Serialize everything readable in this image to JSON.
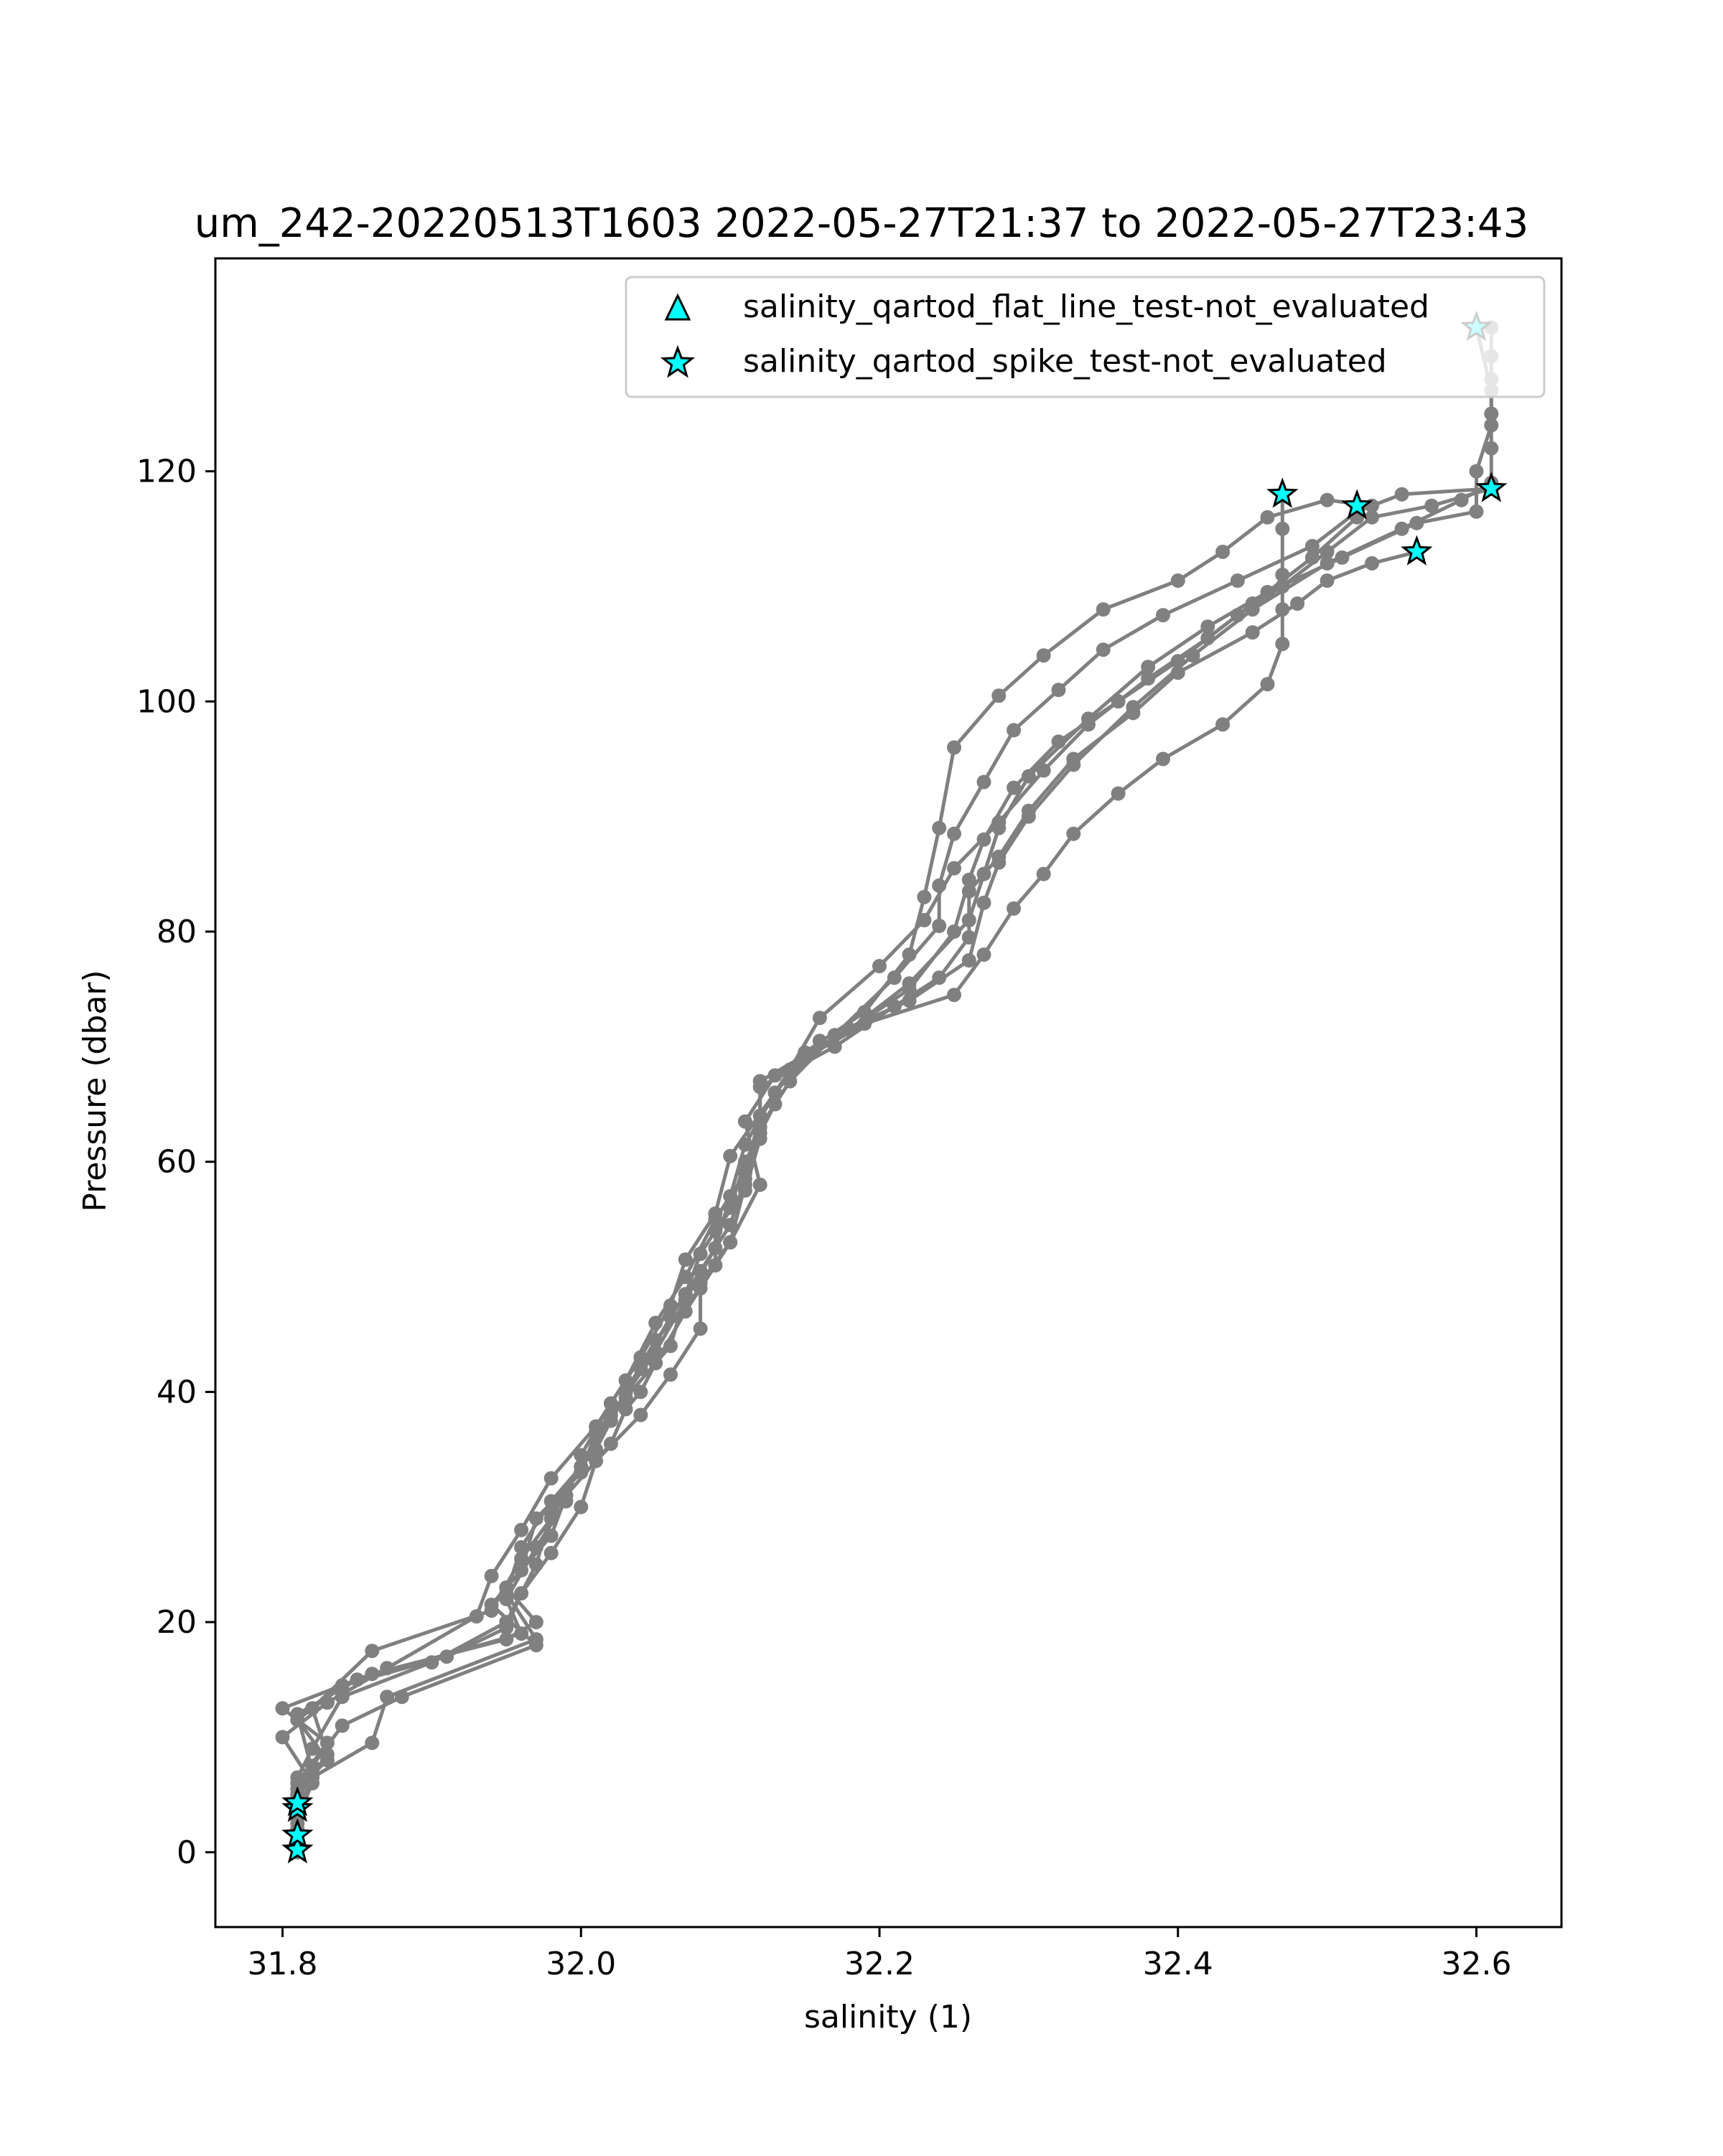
{
  "chart_data": {
    "type": "line",
    "title": "um_242-20220513T1603 2022-05-27T21:37 to 2022-05-27T23:43",
    "xlabel": "salinity (1)",
    "ylabel": "Pressure (dbar)",
    "xlim": [
      31.755,
      32.657
    ],
    "ylim": [
      138.5,
      -6.5
    ],
    "y_inverted": true,
    "grid": false,
    "x_ticks": [
      "31.8",
      "32.0",
      "32.2",
      "32.4",
      "32.6"
    ],
    "y_ticks": [
      "0",
      "20",
      "40",
      "60",
      "80",
      "100",
      "120"
    ],
    "legend_position": "upper right",
    "colors": {
      "profile": "#808080",
      "flag_fill": "#00ffff",
      "flag_edge": "#000000"
    },
    "legend": [
      {
        "label": "salinity_qartod_flat_line_test-not_evaluated",
        "marker": "triangle"
      },
      {
        "label": "salinity_qartod_spike_test-not_evaluated",
        "marker": "star"
      }
    ],
    "series": [
      {
        "name": "profile",
        "points": [
          [
            31.81,
            0.5
          ],
          [
            31.81,
            4.0
          ],
          [
            31.81,
            6.0
          ],
          [
            31.83,
            9.5
          ],
          [
            31.8,
            12.5
          ],
          [
            31.86,
            15.5
          ],
          [
            31.95,
            18.5
          ],
          [
            31.97,
            20.0
          ],
          [
            31.95,
            23.0
          ],
          [
            31.98,
            27.5
          ],
          [
            31.99,
            31.0
          ],
          [
            32.02,
            35.5
          ],
          [
            32.03,
            38.5
          ],
          [
            32.04,
            40.0
          ],
          [
            32.05,
            42.5
          ],
          [
            32.07,
            47.0
          ],
          [
            32.09,
            51.0
          ],
          [
            32.09,
            54.0
          ],
          [
            32.11,
            57.5
          ],
          [
            32.12,
            62.0
          ],
          [
            32.12,
            66.5
          ],
          [
            32.17,
            70.0
          ],
          [
            32.21,
            73.5
          ],
          [
            32.24,
            76.0
          ],
          [
            32.26,
            79.5
          ],
          [
            32.26,
            83.5
          ],
          [
            32.28,
            86.5
          ],
          [
            32.3,
            90.5
          ],
          [
            32.33,
            95.0
          ],
          [
            32.37,
            99.0
          ],
          [
            32.4,
            102.5
          ],
          [
            32.45,
            106.0
          ],
          [
            32.48,
            108.5
          ],
          [
            32.5,
            110.5
          ],
          [
            32.53,
            112.0
          ],
          [
            32.56,
            113.0
          ]
        ]
      },
      {
        "name": "profile",
        "points": [
          [
            31.81,
            1.0
          ],
          [
            31.81,
            5.0
          ],
          [
            31.82,
            7.5
          ],
          [
            31.84,
            11.0
          ],
          [
            31.88,
            13.5
          ],
          [
            31.97,
            18.0
          ],
          [
            31.94,
            21.5
          ],
          [
            31.96,
            24.5
          ],
          [
            31.97,
            29.0
          ],
          [
            32.0,
            33.0
          ],
          [
            32.01,
            36.5
          ],
          [
            32.03,
            39.5
          ],
          [
            32.06,
            44.0
          ],
          [
            32.07,
            48.5
          ],
          [
            32.08,
            52.0
          ],
          [
            32.1,
            56.0
          ],
          [
            32.11,
            60.0
          ],
          [
            32.13,
            65.0
          ],
          [
            32.15,
            69.0
          ],
          [
            32.19,
            72.0
          ],
          [
            32.25,
            74.5
          ],
          [
            32.27,
            78.0
          ],
          [
            32.29,
            82.0
          ],
          [
            32.31,
            85.0
          ],
          [
            32.33,
            88.5
          ],
          [
            32.36,
            92.0
          ],
          [
            32.39,
            95.0
          ],
          [
            32.43,
            98.0
          ],
          [
            32.46,
            101.5
          ],
          [
            32.47,
            105.0
          ],
          [
            32.47,
            108.0
          ],
          [
            32.47,
            111.0
          ],
          [
            32.47,
            115.0
          ],
          [
            32.47,
            118.0
          ]
        ]
      },
      {
        "name": "profile",
        "points": [
          [
            31.81,
            2.0
          ],
          [
            31.81,
            5.5
          ],
          [
            31.83,
            8.0
          ],
          [
            31.81,
            11.5
          ],
          [
            31.84,
            14.5
          ],
          [
            31.91,
            17.0
          ],
          [
            31.95,
            19.5
          ],
          [
            31.96,
            22.5
          ],
          [
            31.98,
            26.0
          ],
          [
            32.0,
            30.0
          ],
          [
            32.01,
            34.0
          ],
          [
            32.04,
            38.0
          ],
          [
            32.06,
            41.5
          ],
          [
            32.08,
            45.5
          ],
          [
            32.08,
            49.5
          ],
          [
            32.1,
            53.0
          ],
          [
            32.12,
            58.0
          ],
          [
            32.11,
            63.5
          ],
          [
            32.13,
            67.5
          ],
          [
            32.18,
            71.5
          ],
          [
            32.22,
            75.0
          ],
          [
            32.25,
            80.0
          ],
          [
            32.26,
            84.5
          ],
          [
            32.27,
            88.0
          ],
          [
            32.29,
            92.5
          ],
          [
            32.32,
            96.5
          ],
          [
            32.36,
            100.0
          ],
          [
            32.4,
            103.5
          ],
          [
            32.44,
            107.5
          ],
          [
            32.47,
            110.0
          ],
          [
            32.5,
            113.0
          ],
          [
            32.53,
            116.0
          ],
          [
            32.57,
            117.0
          ],
          [
            32.61,
            118.5
          ]
        ]
      },
      {
        "name": "profile",
        "points": [
          [
            31.81,
            3.0
          ],
          [
            31.82,
            6.0
          ],
          [
            31.8,
            10.0
          ],
          [
            31.83,
            13.0
          ],
          [
            31.87,
            16.0
          ],
          [
            31.93,
            20.5
          ],
          [
            31.94,
            24.0
          ],
          [
            31.96,
            28.0
          ],
          [
            31.98,
            32.5
          ],
          [
            32.01,
            37.0
          ],
          [
            32.03,
            41.0
          ],
          [
            32.05,
            46.0
          ],
          [
            32.07,
            50.0
          ],
          [
            32.09,
            55.0
          ],
          [
            32.11,
            59.0
          ],
          [
            32.12,
            64.0
          ],
          [
            32.14,
            68.0
          ],
          [
            32.16,
            72.5
          ],
          [
            32.2,
            77.0
          ],
          [
            32.23,
            81.0
          ],
          [
            32.25,
            85.5
          ],
          [
            32.28,
            89.5
          ],
          [
            32.31,
            94.0
          ],
          [
            32.34,
            98.0
          ],
          [
            32.38,
            102.0
          ],
          [
            32.42,
            105.5
          ],
          [
            32.45,
            108.5
          ],
          [
            32.49,
            112.5
          ],
          [
            32.52,
            116.0
          ],
          [
            32.52,
            117.0
          ]
        ]
      },
      {
        "name": "profile",
        "points": [
          [
            31.81,
            0.5
          ],
          [
            31.81,
            4.5
          ],
          [
            31.82,
            7.0
          ],
          [
            31.81,
            12.0
          ],
          [
            31.85,
            15.0
          ],
          [
            31.96,
            19.0
          ],
          [
            31.95,
            22.0
          ],
          [
            31.97,
            26.5
          ],
          [
            31.99,
            30.5
          ],
          [
            32.0,
            34.5
          ],
          [
            32.02,
            39.0
          ],
          [
            32.04,
            43.0
          ],
          [
            32.06,
            47.5
          ],
          [
            32.07,
            51.5
          ],
          [
            32.09,
            55.5
          ],
          [
            32.1,
            60.5
          ],
          [
            32.13,
            66.0
          ],
          [
            32.16,
            70.5
          ],
          [
            32.22,
            74.0
          ],
          [
            32.26,
            77.5
          ],
          [
            32.27,
            82.5
          ],
          [
            32.28,
            86.0
          ],
          [
            32.3,
            90.0
          ],
          [
            32.33,
            94.5
          ],
          [
            32.37,
            99.5
          ],
          [
            32.41,
            104.0
          ],
          [
            32.45,
            108.0
          ],
          [
            32.5,
            112.0
          ],
          [
            32.55,
            115.0
          ],
          [
            32.59,
            117.5
          ],
          [
            32.61,
            119.0
          ],
          [
            32.61,
            122.0
          ],
          [
            32.61,
            125.0
          ],
          [
            32.61,
            128.0
          ],
          [
            32.61,
            130.0
          ],
          [
            32.61,
            132.5
          ]
        ]
      },
      {
        "name": "profile",
        "points": [
          [
            31.81,
            2.5
          ],
          [
            31.81,
            6.5
          ],
          [
            31.82,
            9.0
          ],
          [
            31.84,
            13.5
          ],
          [
            31.9,
            16.5
          ],
          [
            31.95,
            20.0
          ],
          [
            31.97,
            25.0
          ],
          [
            31.98,
            29.5
          ],
          [
            32.0,
            33.5
          ],
          [
            32.02,
            37.5
          ],
          [
            32.04,
            42.0
          ],
          [
            32.06,
            46.5
          ],
          [
            32.08,
            50.5
          ],
          [
            32.1,
            54.5
          ],
          [
            32.11,
            58.5
          ],
          [
            32.12,
            63.0
          ],
          [
            32.14,
            67.0
          ],
          [
            32.17,
            71.0
          ],
          [
            32.21,
            76.0
          ],
          [
            32.24,
            80.5
          ],
          [
            32.24,
            84.0
          ],
          [
            32.25,
            88.5
          ],
          [
            32.27,
            93.0
          ],
          [
            32.29,
            97.5
          ],
          [
            32.32,
            101.0
          ],
          [
            32.35,
            104.5
          ],
          [
            32.39,
            107.5
          ],
          [
            32.44,
            110.5
          ],
          [
            32.49,
            113.5
          ],
          [
            32.52,
            116.5
          ],
          [
            32.55,
            118.0
          ],
          [
            32.61,
            118.5
          ]
        ]
      },
      {
        "name": "profile",
        "points": [
          [
            31.81,
            1.5
          ],
          [
            31.81,
            5.0
          ],
          [
            31.83,
            8.5
          ],
          [
            31.82,
            12.5
          ],
          [
            31.86,
            17.5
          ],
          [
            31.94,
            21.0
          ],
          [
            31.96,
            25.5
          ],
          [
            31.98,
            29.0
          ],
          [
            32.0,
            33.5
          ],
          [
            32.02,
            38.0
          ],
          [
            32.05,
            43.5
          ],
          [
            32.07,
            48.0
          ],
          [
            32.09,
            52.5
          ],
          [
            32.1,
            57.0
          ],
          [
            32.11,
            61.5
          ],
          [
            32.13,
            66.0
          ],
          [
            32.15,
            69.5
          ],
          [
            32.19,
            73.0
          ],
          [
            32.22,
            78.0
          ],
          [
            32.23,
            83.0
          ],
          [
            32.24,
            89.0
          ],
          [
            32.25,
            96.0
          ],
          [
            32.28,
            100.5
          ],
          [
            32.31,
            104.0
          ],
          [
            32.35,
            108.0
          ],
          [
            32.4,
            110.5
          ],
          [
            32.43,
            113.0
          ],
          [
            32.46,
            116.0
          ],
          [
            32.5,
            117.5
          ],
          [
            32.53,
            117.0
          ]
        ]
      },
      {
        "name": "profile",
        "points": [
          [
            31.81,
            0.0
          ],
          [
            31.81,
            3.5
          ],
          [
            31.82,
            6.5
          ],
          [
            31.86,
            9.5
          ],
          [
            31.87,
            13.5
          ],
          [
            31.97,
            18.5
          ],
          [
            31.95,
            22.5
          ],
          [
            31.96,
            26.5
          ],
          [
            31.98,
            30.5
          ],
          [
            32.01,
            35.0
          ],
          [
            32.03,
            40.0
          ],
          [
            32.05,
            44.5
          ],
          [
            32.08,
            49.0
          ],
          [
            32.1,
            53.0
          ],
          [
            32.11,
            58.0
          ],
          [
            32.12,
            62.5
          ],
          [
            32.12,
            67.0
          ],
          [
            32.18,
            71.5
          ],
          [
            32.22,
            75.5
          ],
          [
            32.26,
            81.0
          ],
          [
            32.27,
            85.0
          ],
          [
            32.28,
            89.0
          ],
          [
            32.3,
            93.5
          ],
          [
            32.34,
            98.5
          ],
          [
            32.38,
            103.0
          ],
          [
            32.42,
            106.5
          ],
          [
            32.46,
            109.5
          ],
          [
            32.51,
            112.5
          ],
          [
            32.56,
            115.5
          ],
          [
            32.6,
            116.5
          ],
          [
            32.6,
            120.0
          ],
          [
            32.61,
            124.0
          ],
          [
            32.61,
            127.0
          ],
          [
            32.6,
            132.5
          ]
        ]
      }
    ],
    "flagged_points": {
      "salinity_qartod_spike_test-not_evaluated": [
        [
          31.81,
          0.2
        ],
        [
          31.81,
          1.5
        ],
        [
          31.81,
          3.8
        ],
        [
          31.81,
          4.3
        ],
        [
          32.56,
          113.0
        ],
        [
          32.52,
          117.0
        ],
        [
          32.61,
          118.5
        ],
        [
          32.47,
          118.0
        ],
        [
          32.6,
          132.5
        ]
      ],
      "salinity_qartod_flat_line_test-not_evaluated": []
    }
  }
}
